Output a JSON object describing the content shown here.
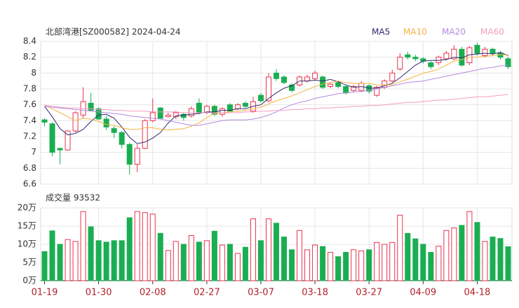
{
  "chart_data": {
    "type": "candlestick",
    "title": "北部湾港[SZ000582] 2024-04-24",
    "categories": [
      "01-19",
      null,
      null,
      null,
      null,
      null,
      null,
      "01-30",
      null,
      null,
      null,
      null,
      null,
      null,
      "02-08",
      null,
      null,
      null,
      null,
      null,
      null,
      "02-27",
      null,
      null,
      null,
      null,
      null,
      null,
      "03-07",
      null,
      null,
      null,
      null,
      null,
      null,
      "03-18",
      null,
      null,
      null,
      null,
      null,
      null,
      "03-27",
      null,
      null,
      null,
      null,
      null,
      null,
      "04-09",
      null,
      null,
      null,
      null,
      null,
      null,
      "04-18",
      null,
      null,
      null,
      null
    ],
    "open": [
      7.41,
      7.36,
      7.05,
      7.03,
      7.27,
      7.47,
      7.62,
      7.55,
      7.42,
      7.3,
      7.25,
      7.1,
      6.85,
      7.05,
      7.4,
      7.56,
      7.45,
      7.45,
      7.48,
      7.46,
      7.62,
      7.5,
      7.58,
      7.48,
      7.6,
      7.55,
      7.62,
      7.52,
      7.72,
      7.65,
      8.0,
      7.95,
      7.85,
      7.85,
      7.9,
      7.93,
      7.95,
      7.83,
      7.88,
      7.83,
      7.78,
      7.78,
      7.84,
      7.72,
      7.82,
      7.9,
      8.05,
      8.23,
      8.2,
      8.18,
      8.13,
      8.13,
      8.18,
      8.18,
      8.3,
      8.13,
      8.35,
      8.22,
      8.3,
      8.25,
      8.18
    ],
    "high": [
      7.43,
      7.38,
      7.06,
      7.28,
      7.52,
      7.82,
      7.75,
      7.57,
      7.46,
      7.33,
      7.27,
      7.12,
      7.1,
      7.42,
      7.68,
      7.57,
      7.5,
      7.52,
      7.5,
      7.58,
      7.68,
      7.6,
      7.6,
      7.57,
      7.62,
      7.62,
      7.64,
      7.7,
      7.75,
      8.0,
      8.05,
      7.97,
      7.87,
      7.97,
      7.98,
      8.03,
      7.97,
      7.88,
      7.9,
      7.85,
      7.85,
      7.9,
      7.86,
      7.84,
      7.92,
      8.04,
      8.25,
      8.27,
      8.23,
      8.2,
      8.15,
      8.22,
      8.28,
      8.35,
      8.33,
      8.34,
      8.38,
      8.33,
      8.32,
      8.28,
      8.2
    ],
    "low": [
      7.33,
      6.95,
      6.85,
      7.02,
      7.25,
      7.43,
      7.52,
      7.41,
      7.28,
      7.18,
      7.05,
      6.72,
      6.75,
      7.04,
      7.38,
      7.42,
      7.44,
      7.42,
      7.4,
      7.44,
      7.48,
      7.48,
      7.46,
      7.45,
      7.5,
      7.53,
      7.56,
      7.5,
      7.63,
      7.63,
      7.9,
      7.86,
      7.76,
      7.83,
      7.88,
      7.9,
      7.8,
      7.81,
      7.81,
      7.73,
      7.76,
      7.76,
      7.74,
      7.7,
      7.8,
      7.88,
      8.03,
      8.17,
      8.15,
      8.12,
      8.05,
      8.1,
      8.16,
      8.16,
      8.08,
      8.1,
      8.22,
      8.2,
      8.22,
      8.17,
      8.05
    ],
    "close": [
      7.38,
      7.0,
      7.03,
      7.27,
      7.5,
      7.64,
      7.53,
      7.42,
      7.32,
      7.25,
      7.1,
      6.85,
      7.05,
      7.4,
      7.5,
      7.43,
      7.47,
      7.5,
      7.44,
      7.55,
      7.5,
      7.58,
      7.48,
      7.55,
      7.52,
      7.6,
      7.58,
      7.64,
      7.65,
      7.95,
      7.93,
      7.88,
      7.78,
      7.95,
      7.95,
      8.0,
      7.82,
      7.86,
      7.83,
      7.75,
      7.83,
      7.87,
      7.77,
      7.82,
      7.9,
      8.0,
      8.2,
      8.2,
      8.18,
      8.15,
      8.08,
      8.2,
      8.25,
      8.3,
      8.1,
      8.32,
      8.25,
      8.3,
      8.25,
      8.2,
      8.08
    ],
    "up_color": "#e8344e",
    "down_color": "#1aae52",
    "series": [
      {
        "name": "MA5",
        "color": "#2c2c6e",
        "values": [
          7.58,
          7.45,
          7.3,
          7.22,
          7.24,
          7.29,
          7.39,
          7.47,
          7.48,
          7.43,
          7.32,
          7.19,
          7.11,
          7.13,
          7.18,
          7.25,
          7.37,
          7.46,
          7.47,
          7.48,
          7.49,
          7.51,
          7.51,
          7.53,
          7.53,
          7.55,
          7.55,
          7.58,
          7.6,
          7.68,
          7.75,
          7.81,
          7.84,
          7.9,
          7.9,
          7.91,
          7.9,
          7.92,
          7.89,
          7.85,
          7.82,
          7.83,
          7.81,
          7.81,
          7.84,
          7.87,
          7.94,
          8.02,
          8.1,
          8.15,
          8.16,
          8.16,
          8.17,
          8.2,
          8.19,
          8.23,
          8.24,
          8.25,
          8.24,
          8.26,
          8.22
        ]
      },
      {
        "name": "MA10",
        "color": "#f5b342",
        "values": [
          7.6,
          7.55,
          7.5,
          7.45,
          7.4,
          7.43,
          7.42,
          7.39,
          7.35,
          7.34,
          7.31,
          7.29,
          7.29,
          7.31,
          7.31,
          7.29,
          7.28,
          7.29,
          7.3,
          7.33,
          7.37,
          7.44,
          7.49,
          7.5,
          7.51,
          7.52,
          7.53,
          7.55,
          7.57,
          7.61,
          7.65,
          7.68,
          7.71,
          7.75,
          7.79,
          7.83,
          7.86,
          7.88,
          7.9,
          7.88,
          7.87,
          7.87,
          7.87,
          7.85,
          7.85,
          7.85,
          7.89,
          7.92,
          7.96,
          8.0,
          8.02,
          8.05,
          8.1,
          8.15,
          8.17,
          8.2,
          8.2,
          8.21,
          8.22,
          8.23,
          8.23
        ]
      },
      {
        "name": "MA20",
        "color": "#b58ae0",
        "values": [
          7.58,
          7.57,
          7.56,
          7.55,
          7.54,
          7.53,
          7.52,
          7.51,
          7.5,
          7.49,
          7.48,
          7.46,
          7.45,
          7.44,
          7.43,
          7.42,
          7.4,
          7.38,
          7.36,
          7.34,
          7.34,
          7.36,
          7.38,
          7.4,
          7.41,
          7.41,
          7.41,
          7.42,
          7.44,
          7.47,
          7.51,
          7.56,
          7.6,
          7.63,
          7.65,
          7.68,
          7.7,
          7.72,
          7.74,
          7.75,
          7.76,
          7.77,
          7.78,
          7.8,
          7.82,
          7.84,
          7.86,
          7.88,
          7.89,
          7.9,
          7.92,
          7.94,
          7.96,
          7.98,
          8.0,
          8.02,
          8.04,
          8.06,
          8.07,
          8.09,
          8.1
        ]
      },
      {
        "name": "MA60",
        "color": "#f39cc2",
        "values": [
          7.59,
          7.58,
          7.57,
          7.56,
          7.56,
          7.55,
          7.55,
          7.54,
          7.54,
          7.53,
          7.53,
          7.52,
          7.52,
          7.52,
          7.51,
          7.51,
          7.51,
          7.51,
          7.5,
          7.5,
          7.5,
          7.5,
          7.5,
          7.5,
          7.5,
          7.5,
          7.51,
          7.51,
          7.52,
          7.52,
          7.53,
          7.53,
          7.54,
          7.54,
          7.55,
          7.55,
          7.56,
          7.56,
          7.57,
          7.57,
          7.58,
          7.58,
          7.59,
          7.59,
          7.6,
          7.61,
          7.62,
          7.63,
          7.63,
          7.64,
          7.65,
          7.66,
          7.66,
          7.67,
          7.68,
          7.69,
          7.7,
          7.7,
          7.71,
          7.72,
          7.73
        ]
      }
    ],
    "ylim": [
      6.6,
      8.4
    ],
    "yticks": [
      8.4,
      8.2,
      8,
      7.8,
      7.6,
      7.4,
      7.2,
      7,
      6.8,
      6.6
    ],
    "grid": true,
    "volume": {
      "title": "成交量 93532",
      "ylim": [
        0,
        20
      ],
      "yticks": [
        {
          "value": 20,
          "label": "20万"
        },
        {
          "value": 15,
          "label": "15万"
        },
        {
          "value": 10,
          "label": "10万"
        },
        {
          "value": 5,
          "label": "5万"
        },
        {
          "value": 0,
          "label": "0万"
        }
      ],
      "values": [
        8,
        13.7,
        10,
        11.3,
        10.8,
        19,
        14.8,
        11,
        10.6,
        11,
        11,
        17.3,
        19,
        18.7,
        18.3,
        13,
        8.3,
        10.8,
        10,
        12.4,
        10.6,
        11,
        13.6,
        9.8,
        10,
        7.5,
        9.2,
        17,
        11,
        17,
        15.8,
        12,
        8.5,
        13.8,
        8.5,
        9.8,
        9.4,
        7.8,
        6.6,
        7.8,
        8.5,
        8.2,
        8.5,
        10.5,
        10,
        10.5,
        18,
        13,
        11.5,
        10,
        7.8,
        9.5,
        13.8,
        14.5,
        15.2,
        19,
        16,
        10.8,
        12,
        11.6,
        9.35
      ]
    }
  }
}
